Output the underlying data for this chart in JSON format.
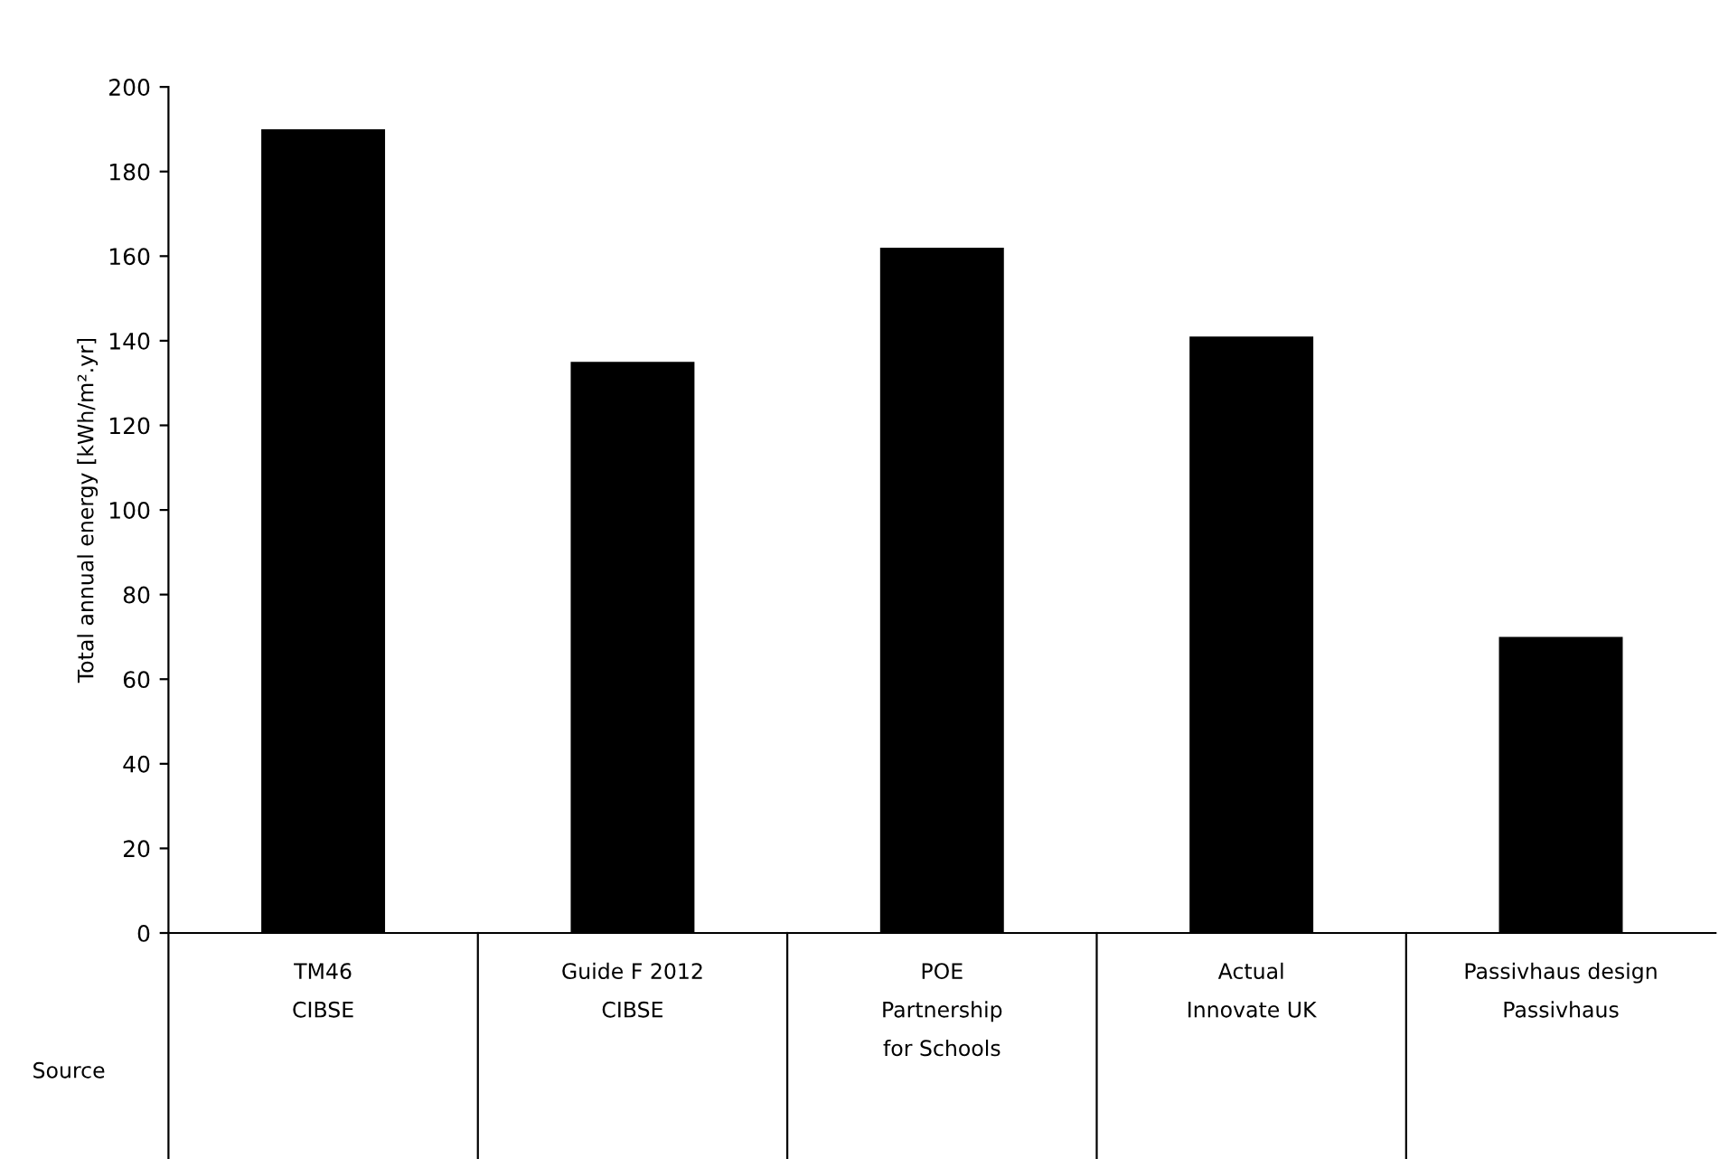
{
  "chart_data": {
    "type": "bar",
    "ylabel": "Total annual energy [kWh/m².yr]",
    "categories": [
      "TM46\nCIBSE",
      "Guide F 2012\nCIBSE",
      "POE\nPartnership\nfor Schools",
      "Actual\nInnovate UK",
      "Passivhaus design\nPassivhaus"
    ],
    "values": [
      190,
      135,
      162,
      141,
      70
    ],
    "color": "#000000",
    "ylim": [
      0,
      200
    ],
    "yticks": [
      0,
      20,
      40,
      60,
      80,
      100,
      120,
      140,
      160,
      180,
      200
    ],
    "grid": false,
    "legend": false,
    "annotations": [
      "Source"
    ]
  }
}
